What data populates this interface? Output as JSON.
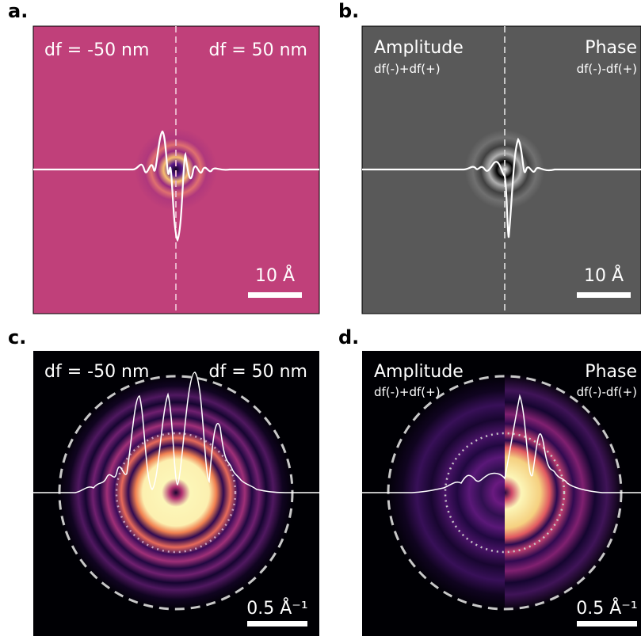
{
  "panels": [
    {
      "label": "a.",
      "left_text": "df = -50 nm",
      "right_text": "df = 50 nm",
      "scale_bar": "10 Å"
    },
    {
      "label": "b.",
      "left_title": "Amplitude",
      "left_subtitle": "df(-)+df(+)",
      "right_title": "Phase",
      "right_subtitle": "df(-)-df(+)",
      "scale_bar": "10 Å"
    },
    {
      "label": "c.",
      "left_text": "df = -50 nm",
      "right_text": "df = 50 nm",
      "scale_bar": "0.5 Å⁻¹"
    },
    {
      "label": "d.",
      "left_title": "Amplitude",
      "left_subtitle": "df(-)+df(+)",
      "right_title": "Phase",
      "right_subtitle": "df(-)-df(+)",
      "scale_bar": "0.5 Å⁻¹"
    }
  ]
}
